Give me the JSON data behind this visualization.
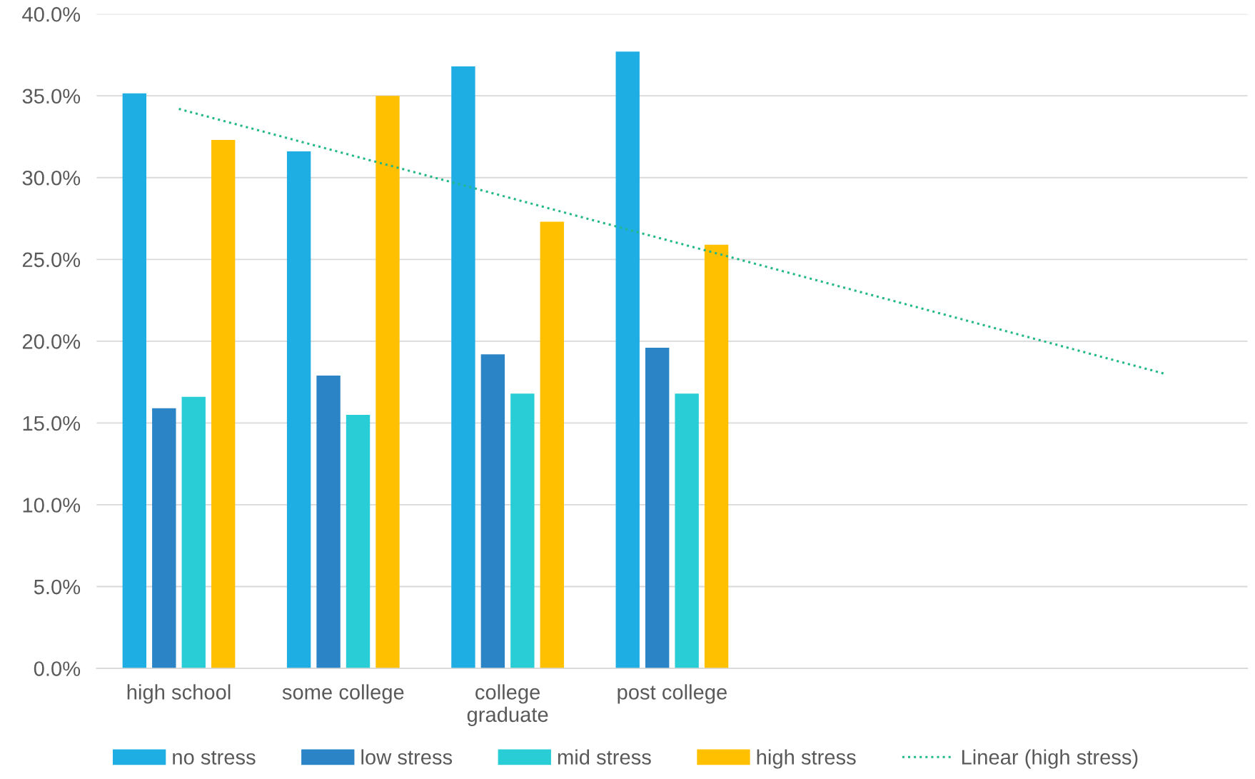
{
  "chart_data": {
    "type": "bar",
    "categories": [
      "high school",
      "some college",
      "college\ngraduate",
      "post college",
      null,
      null,
      null
    ],
    "series": [
      {
        "name": "no stress",
        "color": "#1faee3",
        "values": [
          35.15,
          31.6,
          36.8,
          37.7,
          null,
          null,
          null
        ]
      },
      {
        "name": "low stress",
        "color": "#2a84c6",
        "values": [
          15.9,
          17.9,
          19.2,
          19.6,
          null,
          null,
          null
        ]
      },
      {
        "name": "mid stress",
        "color": "#29cdd6",
        "values": [
          16.6,
          15.5,
          16.8,
          16.8,
          null,
          null,
          null
        ]
      },
      {
        "name": "high stress",
        "color": "#ffc000",
        "values": [
          32.3,
          35.0,
          27.3,
          25.9,
          null,
          null,
          null
        ]
      },
      {
        "name": "Linear (high stress)",
        "type": "line",
        "line_style": "dotted",
        "color": "#23b888",
        "values": [
          34.2,
          null,
          null,
          null,
          null,
          null,
          18.0
        ]
      }
    ],
    "ylim": [
      0,
      40
    ],
    "yticks": [
      {
        "value": 0,
        "label": "0.0%"
      },
      {
        "value": 5,
        "label": "5.0%"
      },
      {
        "value": 10,
        "label": "10.0%"
      },
      {
        "value": 15,
        "label": "15.0%"
      },
      {
        "value": 20,
        "label": "20.0%"
      },
      {
        "value": 25,
        "label": "25.0%"
      },
      {
        "value": 30,
        "label": "30.0%"
      },
      {
        "value": 35,
        "label": "35.0%"
      },
      {
        "value": 40,
        "label": "40.0%"
      }
    ],
    "grid": "y",
    "legend": "bottom"
  }
}
